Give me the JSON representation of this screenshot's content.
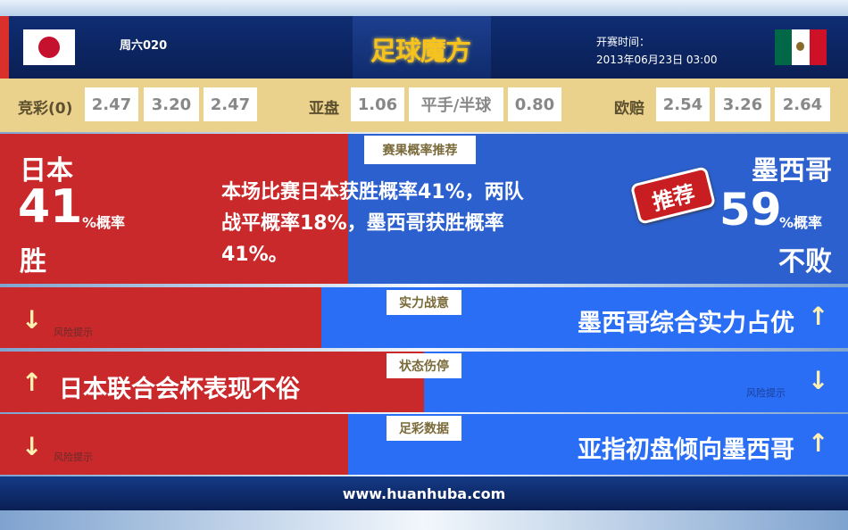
{
  "header": {
    "match_no": "周六020",
    "logo_text": "足球魔方",
    "kickoff_label": "开赛时间：",
    "kickoff_time": "2013年06月23日 03:00",
    "home_flag": "japan-flag",
    "away_flag": "mexico-flag"
  },
  "odds": {
    "jingcai": {
      "label": "竞彩(0)",
      "values": [
        "2.47",
        "3.20",
        "2.47"
      ]
    },
    "asian": {
      "label": "亚盘",
      "values": [
        "1.06",
        "平手/半球",
        "0.80"
      ]
    },
    "euro": {
      "label": "欧赔",
      "values": [
        "2.54",
        "3.26",
        "2.64"
      ]
    }
  },
  "prediction": {
    "tag": "赛果概率推荐",
    "home": {
      "name": "日本",
      "prob": "41",
      "unit": "%概率",
      "result": "胜"
    },
    "away": {
      "name": "墨西哥",
      "prob": "59",
      "unit": "%概率",
      "result": "不败"
    },
    "summary_lines": [
      "本场比赛日本获胜概率41%，两队",
      "战平概率18%，墨西哥获胜概率",
      "41%。"
    ],
    "stamp": "推荐"
  },
  "rows": [
    {
      "tag": "实力战意",
      "home_text": "风险提示",
      "home_arrow": "down",
      "away_text": "墨西哥综合实力占优",
      "away_arrow": "up"
    },
    {
      "tag": "状态伤停",
      "home_text": "日本联合会杯表现不俗",
      "home_arrow": "up",
      "away_text": "风险提示",
      "away_arrow": "down"
    },
    {
      "tag": "足彩数据",
      "home_text": "风险提示",
      "home_arrow": "down",
      "away_text": "亚指初盘倾向墨西哥",
      "away_arrow": "up"
    }
  ],
  "footer": {
    "url": "www.huanhuba.com"
  },
  "colors": {
    "home_red": "#c9292b",
    "away_blue": "#2a6ef5",
    "odds_bg": "#ead18c",
    "header_navy": "#0f2d73",
    "arrow": "#fff0b0"
  }
}
